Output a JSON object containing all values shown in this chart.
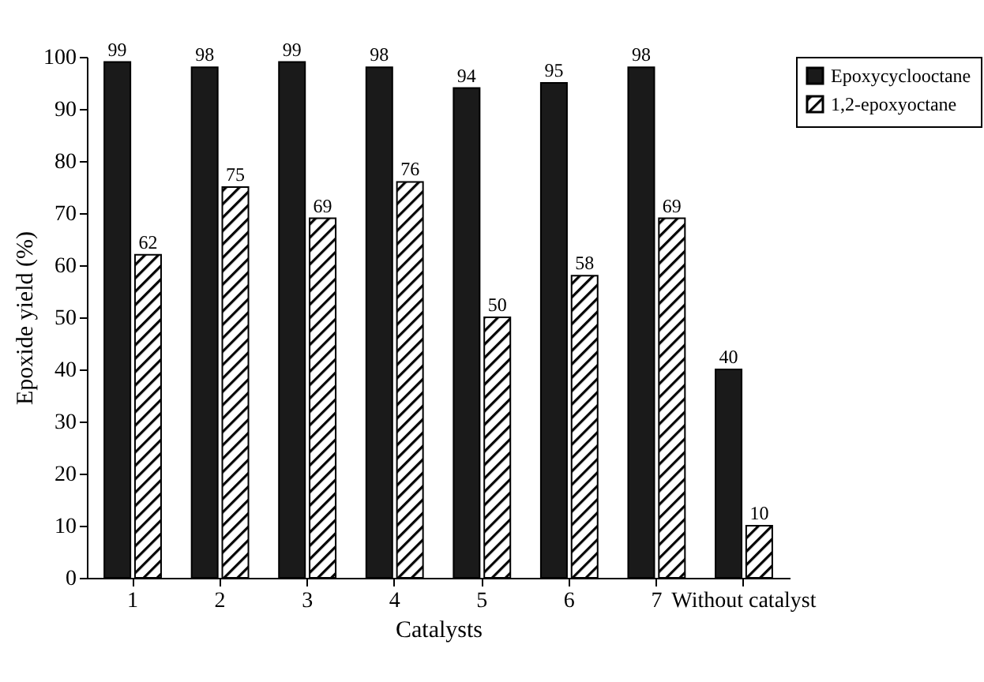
{
  "chart_data": {
    "type": "bar",
    "xlabel": "Catalysts",
    "ylabel": "Epoxide yield (%)",
    "categories": [
      "1",
      "2",
      "3",
      "4",
      "5",
      "6",
      "7",
      "Without catalyst"
    ],
    "series": [
      {
        "name": "Epoxycyclooctane",
        "color": "#1a1a1a",
        "values": [
          99,
          98,
          99,
          98,
          94,
          95,
          98,
          40
        ]
      },
      {
        "name": "1,2-epoxyoctane",
        "color": "#000000",
        "values": [
          62,
          75,
          69,
          76,
          50,
          58,
          69,
          10
        ]
      }
    ],
    "ylim": [
      0,
      100
    ],
    "yticks": [
      0,
      10,
      20,
      30,
      40,
      50,
      60,
      70,
      80,
      90,
      100
    ],
    "grid": false,
    "legend": "top right",
    "data_labels": true
  }
}
